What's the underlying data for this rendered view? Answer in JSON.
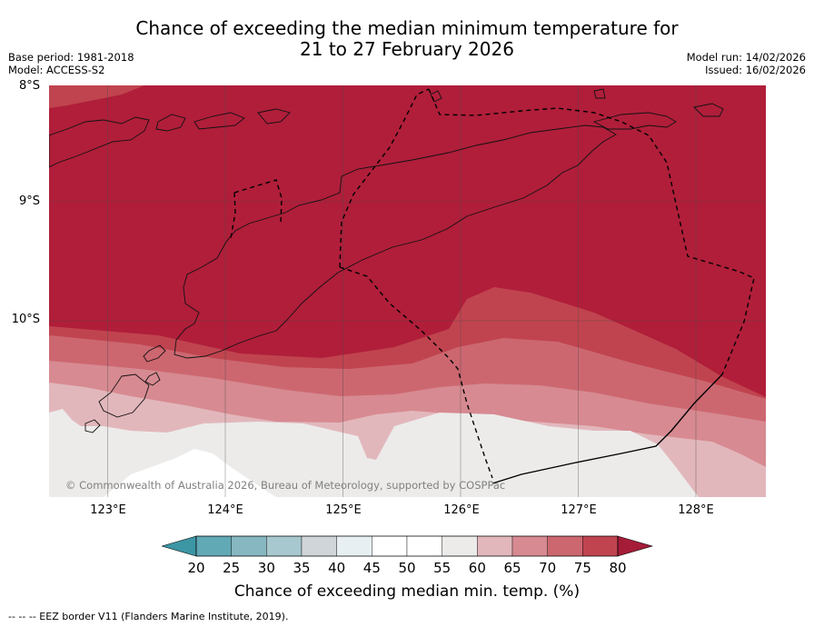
{
  "title": {
    "line1": "Chance of exceeding the median minimum temperature for",
    "line2": "21 to 27 February 2026"
  },
  "meta_left": {
    "base_period": "Base period: 1981-2018",
    "model": "Model: ACCESS-S2"
  },
  "meta_right": {
    "model_run": "Model run: 14/02/2026",
    "issued": "Issued: 16/02/2026"
  },
  "map": {
    "lat_labels": [
      "8°S",
      "9°S",
      "10°S"
    ],
    "lon_labels": [
      "123°E",
      "124°E",
      "125°E",
      "126°E",
      "127°E",
      "128°E"
    ],
    "copyright": "© Commonwealth of Australia 2026, Bureau of Meteorology, supported by COSPPac",
    "colors": {
      "band_80": "#b01e3a",
      "band_75": "#c0444f",
      "band_70": "#cc6770",
      "band_65": "#d78a91",
      "band_60": "#e2b7bc",
      "band_55": "#ecebea",
      "band_50": "#ffffff"
    }
  },
  "colorbar": {
    "ticks": [
      "20",
      "25",
      "30",
      "35",
      "40",
      "45",
      "50",
      "55",
      "60",
      "65",
      "70",
      "75",
      "80"
    ],
    "colors": [
      "#62a9b6",
      "#87b7c0",
      "#a7c8ce",
      "#cfd5d8",
      "#e8eff3",
      "#ffffff",
      "#ffffff",
      "#ecebea",
      "#e2b7bc",
      "#d78a91",
      "#cc6770",
      "#c0444f"
    ],
    "under_color": "#3c96a3",
    "over_color": "#a51c38",
    "label": "Chance of exceeding median min. temp. (%)"
  },
  "footer": {
    "legend": "--  --  -- EEZ border V11 (Flanders Marine Institute, 2019)."
  }
}
